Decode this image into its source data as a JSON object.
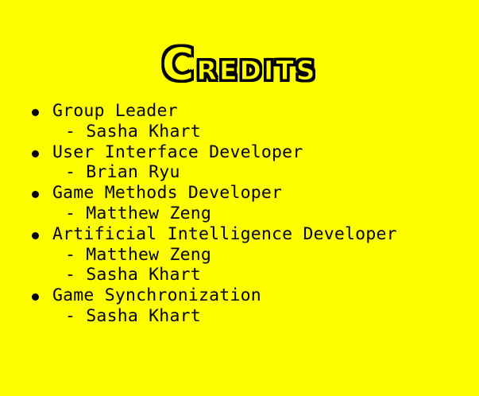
{
  "title": "Credits",
  "title_first_letter": "C",
  "title_rest": "redits",
  "colors": {
    "background": "#ffff00",
    "text": "#000000"
  },
  "credits": [
    {
      "role": "Group Leader",
      "people": [
        "- Sasha Khart"
      ]
    },
    {
      "role": "User Interface Developer",
      "people": [
        "- Brian Ryu"
      ]
    },
    {
      "role": "Game Methods Developer",
      "people": [
        "- Matthew Zeng"
      ]
    },
    {
      "role": "Artificial Intelligence Developer",
      "people": [
        "- Matthew Zeng",
        "- Sasha Khart"
      ]
    },
    {
      "role": "Game Synchronization",
      "people": [
        "- Sasha Khart"
      ]
    }
  ]
}
